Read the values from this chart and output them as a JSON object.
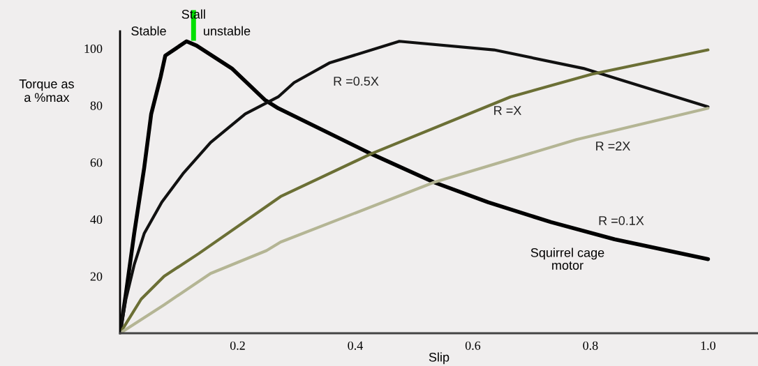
{
  "chart_data": {
    "type": "line",
    "xlabel": "Slip",
    "ylabel": "Torque as\na %max",
    "xlim": [
      0,
      1.085
    ],
    "ylim": [
      0,
      106
    ],
    "xticks": [
      {
        "value": 0.2,
        "label": "0.2"
      },
      {
        "value": 0.4,
        "label": "0.4"
      },
      {
        "value": 0.6,
        "label": "0.6"
      },
      {
        "value": 0.8,
        "label": "0.8"
      },
      {
        "value": 1.0,
        "label": "1.0"
      }
    ],
    "yticks": [
      20,
      40,
      60,
      80,
      100
    ],
    "grid": false,
    "legend": false,
    "marker": "none",
    "line_style": "solid",
    "series": [
      {
        "name": "R =0.1X",
        "color": "#000000",
        "x": [
          0,
          0.01,
          0.024,
          0.041,
          0.053,
          0.069,
          0.077,
          0.113,
          0.13,
          0.19,
          0.246,
          0.269,
          0.427,
          0.534,
          0.626,
          0.733,
          0.841,
          1.0
        ],
        "values": [
          0,
          14,
          35,
          58,
          77,
          90,
          97.5,
          102.5,
          101,
          93,
          82,
          79,
          63,
          53,
          46,
          39,
          33,
          26
        ]
      },
      {
        "name": "R =0.5X",
        "color": "#111111",
        "x": [
          0,
          0.01,
          0.024,
          0.041,
          0.071,
          0.107,
          0.154,
          0.213,
          0.269,
          0.296,
          0.357,
          0.475,
          0.636,
          0.788,
          1.0
        ],
        "values": [
          0,
          12,
          24,
          35,
          46,
          56,
          67,
          77,
          83,
          88,
          95,
          102.5,
          99.5,
          93,
          79.5
        ]
      },
      {
        "name": "R =X",
        "color": "#6b6f35",
        "x": [
          0,
          0.036,
          0.075,
          0.134,
          0.273,
          0.427,
          0.664,
          0.803,
          1.0
        ],
        "values": [
          0,
          12,
          20,
          28,
          48,
          63,
          83,
          91,
          99.5
        ]
      },
      {
        "name": "R =2X",
        "color": "#b4b594",
        "x": [
          0,
          0.075,
          0.154,
          0.249,
          0.273,
          0.534,
          0.776,
          1.0
        ],
        "values": [
          0,
          10,
          21,
          29,
          32,
          53,
          68,
          79
        ]
      }
    ],
    "ref_lines": [
      {
        "axis": "x",
        "value": 0.125,
        "label": "Stall",
        "color": "#00e000"
      }
    ],
    "annotations": [
      "Stable",
      "unstable",
      "Squirrel cage motor"
    ]
  }
}
